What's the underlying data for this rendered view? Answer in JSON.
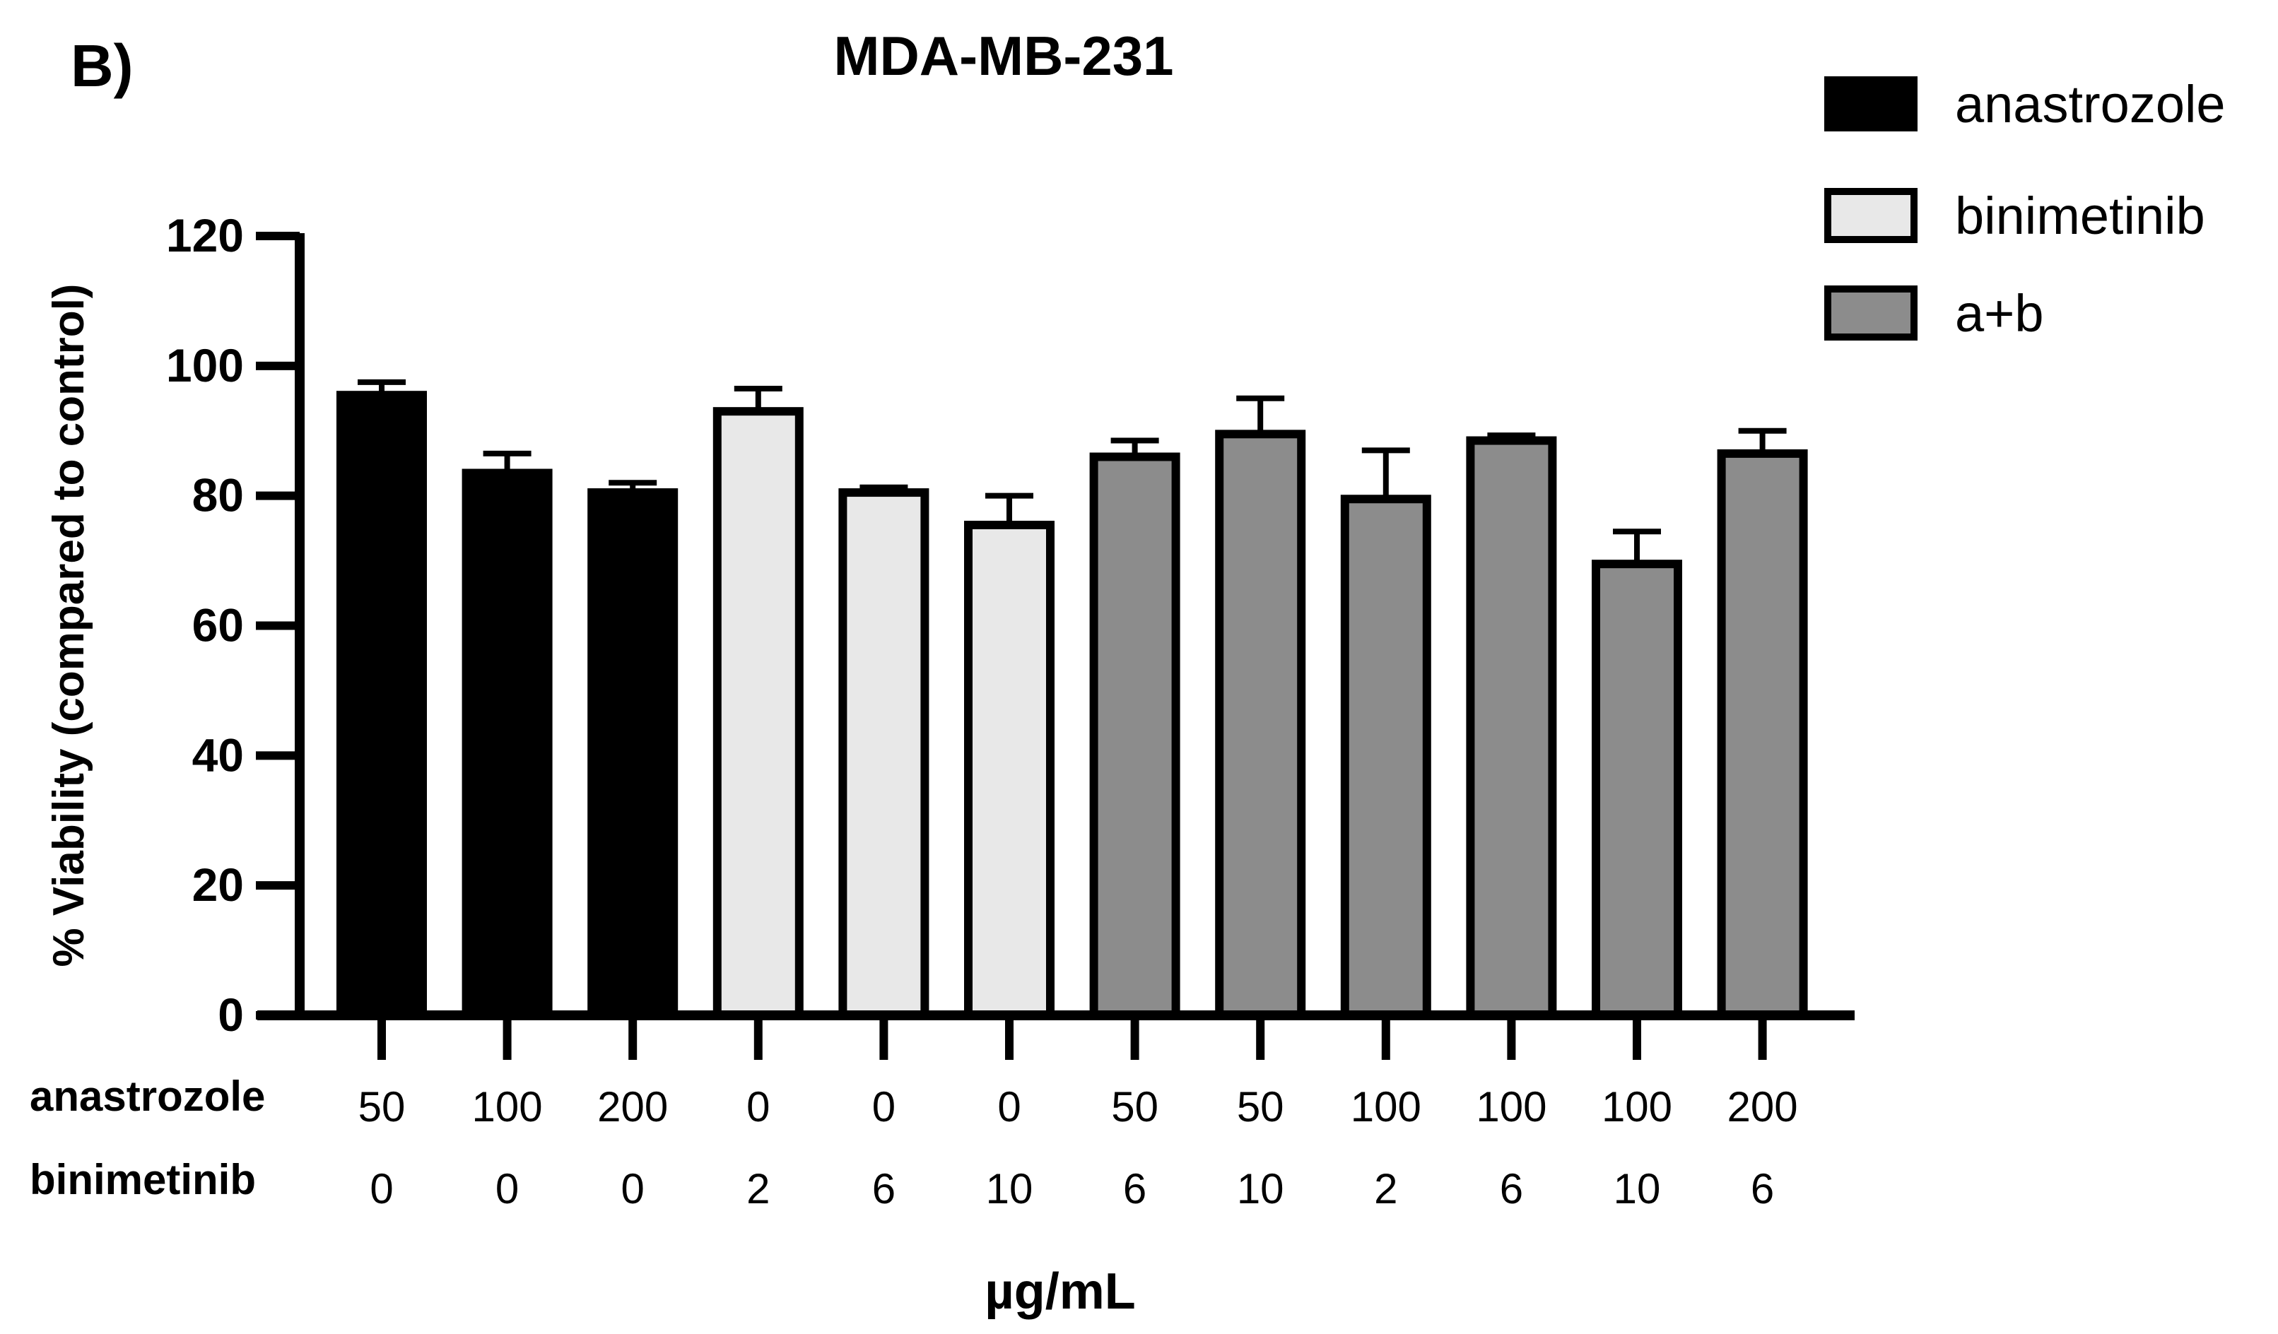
{
  "panel_label": "B)",
  "chart_data": {
    "type": "bar",
    "title": "MDA-MB-231",
    "ylabel": "% Viability (compared to control)",
    "xlabel": "µg/mL",
    "ylim": [
      0,
      120
    ],
    "yticks": [
      0,
      20,
      40,
      60,
      80,
      100,
      120
    ],
    "row_labels": [
      "anastrozole",
      "binimetinib"
    ],
    "categories": [
      {
        "anastrozole": "50",
        "binimetinib": "0"
      },
      {
        "anastrozole": "100",
        "binimetinib": "0"
      },
      {
        "anastrozole": "200",
        "binimetinib": "0"
      },
      {
        "anastrozole": "0",
        "binimetinib": "2"
      },
      {
        "anastrozole": "0",
        "binimetinib": "6"
      },
      {
        "anastrozole": "0",
        "binimetinib": "10"
      },
      {
        "anastrozole": "50",
        "binimetinib": "6"
      },
      {
        "anastrozole": "50",
        "binimetinib": "10"
      },
      {
        "anastrozole": "100",
        "binimetinib": "2"
      },
      {
        "anastrozole": "100",
        "binimetinib": "6"
      },
      {
        "anastrozole": "100",
        "binimetinib": "10"
      },
      {
        "anastrozole": "200",
        "binimetinib": "6"
      }
    ],
    "values": [
      95.5,
      83.5,
      80.5,
      93,
      80.5,
      75.5,
      86,
      89.5,
      79.5,
      88.5,
      69.5,
      86.5
    ],
    "errors": [
      2,
      3,
      1.5,
      3.5,
      0.8,
      4.5,
      2.5,
      5.5,
      7.5,
      0.8,
      5,
      3.5
    ],
    "groups": [
      "anastrozole",
      "anastrozole",
      "anastrozole",
      "binimetinib",
      "binimetinib",
      "binimetinib",
      "a+b",
      "a+b",
      "a+b",
      "a+b",
      "a+b",
      "a+b"
    ],
    "legend": [
      {
        "name": "anastrozole",
        "color": "#000000"
      },
      {
        "name": "binimetinib",
        "color": "#e8e8e8"
      },
      {
        "name": "a+b",
        "color": "#8c8c8c"
      }
    ],
    "legend_position": "top-right",
    "grid": false
  }
}
